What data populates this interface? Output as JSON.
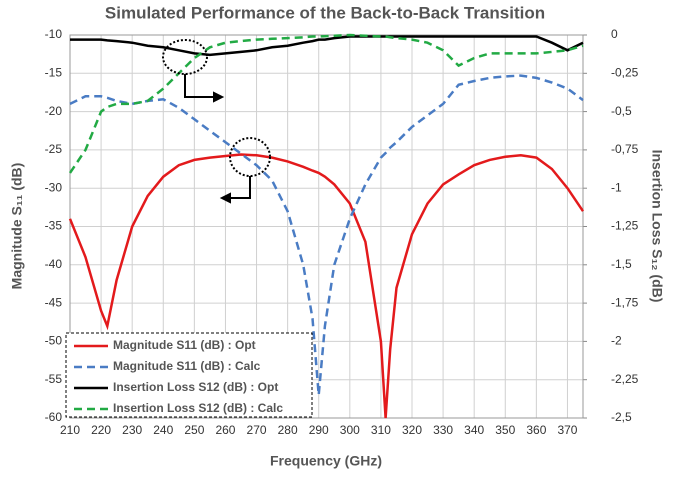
{
  "chart_data": {
    "type": "line",
    "title": "Simulated Performance of the Back-to-Back Transition",
    "x_label": "Frequency (GHz)",
    "y_label": "Magnitude S₁₁ (dB)",
    "y2_label": "Insertion Loss S₁₂ (dB)",
    "x": [
      210,
      215,
      220,
      222,
      225,
      230,
      235,
      240,
      245,
      250,
      255,
      260,
      265,
      270,
      275,
      280,
      285,
      288,
      290,
      292,
      295,
      300,
      305,
      310,
      311.5,
      313,
      315,
      320,
      325,
      330,
      335,
      340,
      345,
      350,
      355,
      360,
      365,
      370,
      375
    ],
    "xlim": [
      210,
      375
    ],
    "xticks": [
      210,
      220,
      230,
      240,
      250,
      260,
      270,
      280,
      290,
      300,
      310,
      320,
      330,
      340,
      350,
      360,
      370
    ],
    "ylim": [
      -60,
      -10
    ],
    "yticks": [
      -60,
      -55,
      -50,
      -45,
      -40,
      -35,
      -30,
      -25,
      -20,
      -15,
      -10
    ],
    "y2lim": [
      -2.5,
      0
    ],
    "y2ticks": [
      {
        "value": -2.5,
        "label": "-2,5"
      },
      {
        "value": -2.25,
        "label": "-2,25"
      },
      -2,
      {
        "value": -1.75,
        "label": "-1,75"
      },
      {
        "value": -1.5,
        "label": "-1,5"
      },
      {
        "value": -1.25,
        "label": "-1,25"
      },
      -1,
      {
        "value": -0.75,
        "label": "-0,75"
      },
      {
        "value": -0.5,
        "label": "-0,5"
      },
      {
        "value": -0.25,
        "label": "-0,25"
      },
      0
    ],
    "grid": true,
    "legend": "lower left",
    "series": [
      {
        "name": "Magnitude S11 (dB) : Opt",
        "color": "#e31a1c",
        "dash": false,
        "values": [
          -34,
          -39,
          -46,
          -48,
          -42,
          -35,
          -31,
          -28.5,
          -27,
          -26.3,
          -26,
          -25.8,
          -25.6,
          -25.7,
          -26,
          -26.5,
          -27.2,
          -27.7,
          -28,
          -28.5,
          -29.5,
          -32,
          -37,
          -50,
          -60,
          -51,
          -43,
          -36,
          -32,
          -29.5,
          -28.2,
          -27,
          -26.3,
          -25.9,
          -25.7,
          -26,
          -27.5,
          -30,
          -33
        ]
      },
      {
        "name": "Magnitude S11 (dB) : Calc",
        "color": "#4a7cc4",
        "dash": true,
        "values": [
          -19,
          -18,
          -18,
          -18.2,
          -18.6,
          -19,
          -18.6,
          -18.4,
          -19.5,
          -21,
          -22.5,
          -24,
          -25.5,
          -27,
          -29,
          -33,
          -40,
          -47,
          -57,
          -48,
          -40,
          -34,
          -29.5,
          -26,
          -25.4,
          -24.7,
          -24,
          -22,
          -20.5,
          -19,
          -16.5,
          -16,
          -15.6,
          -15.4,
          -15.3,
          -15.6,
          -16.2,
          -17,
          -18.5
        ]
      },
      {
        "name": "Insertion Loss S12 (dB) : Opt",
        "color": "#000000",
        "dash": false,
        "axis": "y2",
        "values": [
          -0.03,
          -0.03,
          -0.03,
          -0.035,
          -0.04,
          -0.05,
          -0.07,
          -0.08,
          -0.1,
          -0.12,
          -0.13,
          -0.12,
          -0.11,
          -0.1,
          -0.08,
          -0.07,
          -0.05,
          -0.04,
          -0.03,
          -0.03,
          -0.02,
          -0.01,
          -0.01,
          -0.01,
          -0.01,
          -0.01,
          -0.01,
          -0.01,
          -0.01,
          -0.01,
          -0.01,
          -0.01,
          -0.01,
          -0.01,
          -0.01,
          -0.01,
          -0.05,
          -0.1,
          -0.05
        ]
      },
      {
        "name": "Insertion Loss S12 (dB) : Calc",
        "color": "#22aa44",
        "dash": true,
        "axis": "y2",
        "values": [
          -0.9,
          -0.75,
          -0.5,
          -0.47,
          -0.45,
          -0.45,
          -0.43,
          -0.35,
          -0.25,
          -0.15,
          -0.08,
          -0.05,
          -0.04,
          -0.03,
          -0.025,
          -0.02,
          -0.015,
          -0.01,
          -0.01,
          -0.008,
          -0.005,
          0,
          -0.005,
          -0.01,
          -0.01,
          -0.015,
          -0.02,
          -0.03,
          -0.05,
          -0.1,
          -0.2,
          -0.15,
          -0.12,
          -0.12,
          -0.12,
          -0.12,
          -0.11,
          -0.1,
          -0.07
        ]
      }
    ]
  }
}
